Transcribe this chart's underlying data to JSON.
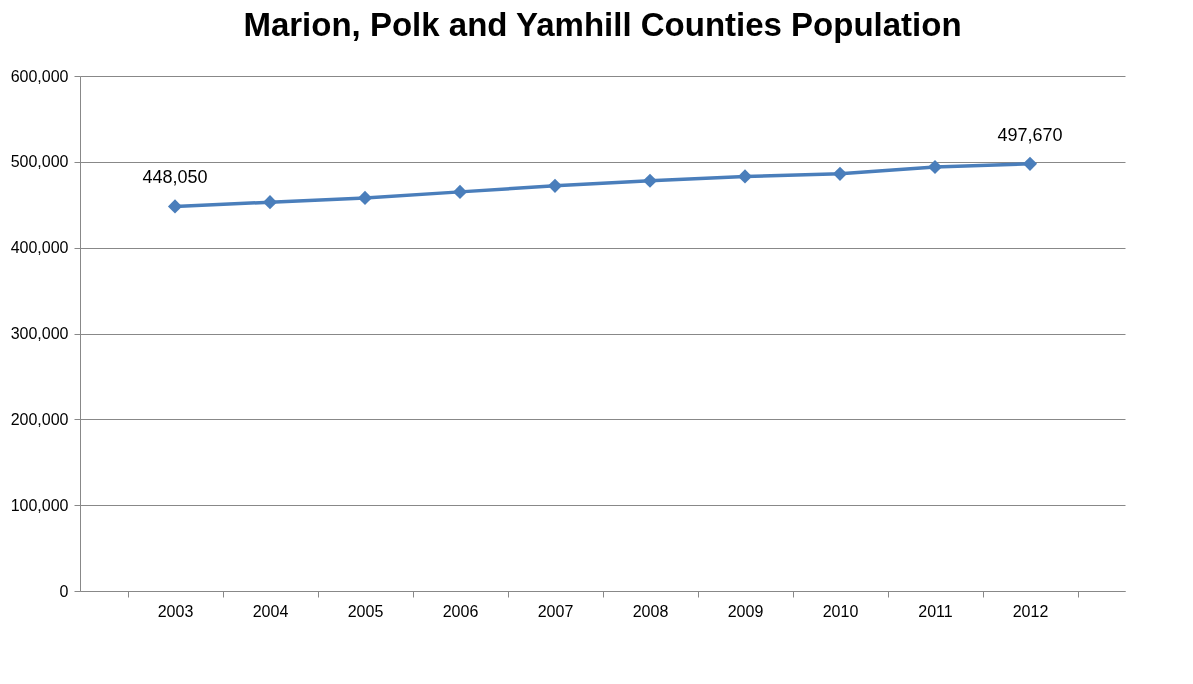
{
  "chart_data": {
    "type": "line",
    "title": "Marion, Polk and Yamhill Counties Population",
    "categories": [
      "2003",
      "2004",
      "2005",
      "2006",
      "2007",
      "2008",
      "2009",
      "2010",
      "2011",
      "2012"
    ],
    "series": [
      {
        "color": "#4a7ebb",
        "values": [
          448050,
          453000,
          458000,
          465000,
          472000,
          478000,
          483000,
          486000,
          494000,
          497670
        ],
        "value_labels": [
          "448,050",
          null,
          null,
          null,
          null,
          null,
          null,
          null,
          null,
          "497,670"
        ]
      }
    ],
    "ylim": [
      0,
      600000
    ],
    "yticks": [
      {
        "value": 0,
        "label": "0"
      },
      {
        "value": 100000,
        "label": "100,000"
      },
      {
        "value": 200000,
        "label": "200,000"
      },
      {
        "value": 300000,
        "label": "300,000"
      },
      {
        "value": 400000,
        "label": "400,000"
      },
      {
        "value": 500000,
        "label": "500,000"
      },
      {
        "value": 600000,
        "label": "600,000"
      }
    ],
    "grid": "y",
    "marker": "diamond",
    "line_style": "solid"
  }
}
